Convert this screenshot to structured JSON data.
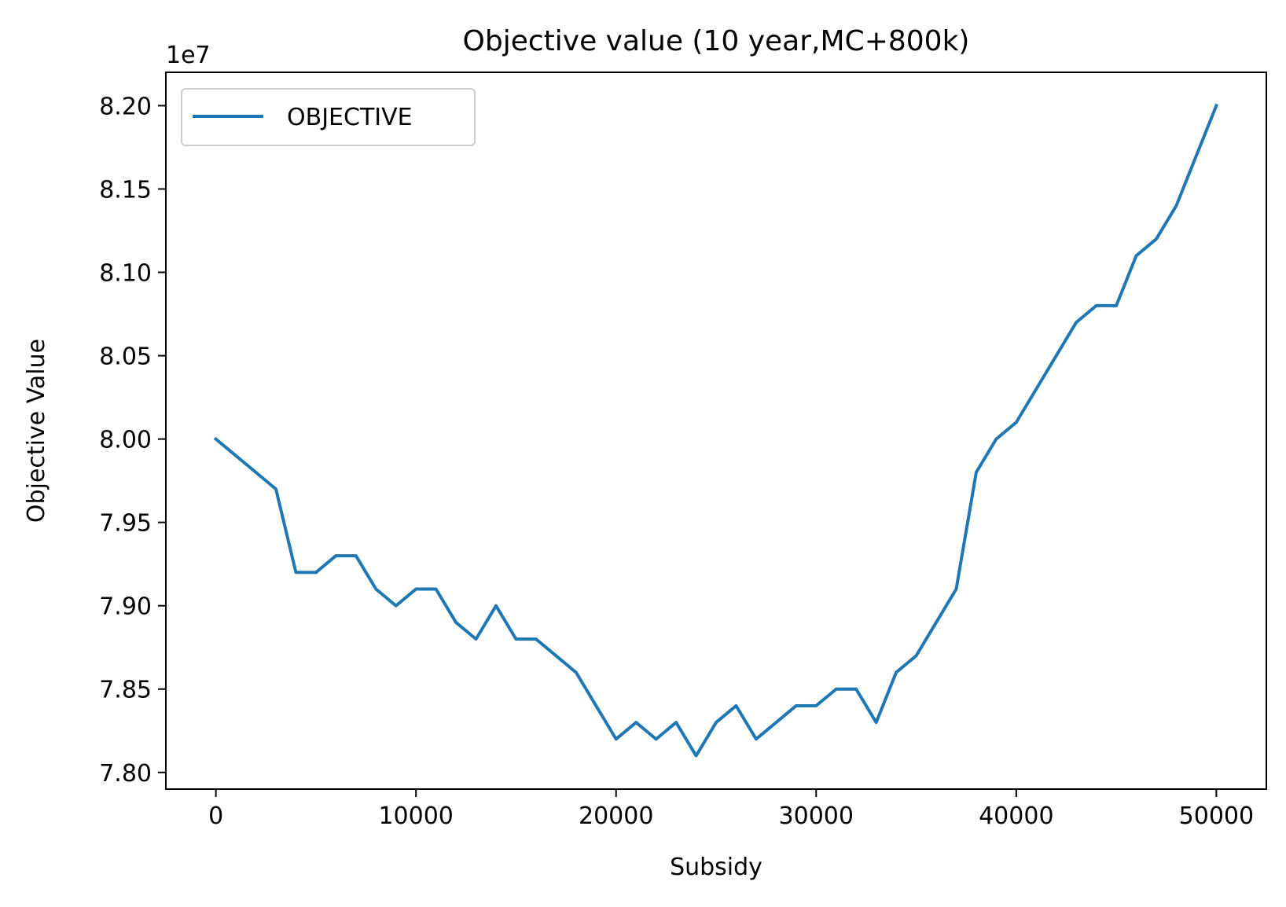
{
  "chart_data": {
    "type": "line",
    "title": "Objective value (10 year,MC+800k)",
    "xlabel": "Subsidy",
    "ylabel": "Objective Value",
    "y_offset_text": "1e7",
    "xlim": [
      -2500,
      52500
    ],
    "ylim": [
      7.79,
      8.22
    ],
    "x_ticks": [
      0,
      10000,
      20000,
      30000,
      40000,
      50000
    ],
    "y_ticks": [
      7.8,
      7.85,
      7.9,
      7.95,
      8.0,
      8.05,
      8.1,
      8.15,
      8.2
    ],
    "x_tick_labels": [
      "0",
      "10000",
      "20000",
      "30000",
      "40000",
      "50000"
    ],
    "y_tick_labels": [
      "7.80",
      "7.85",
      "7.90",
      "7.95",
      "8.00",
      "8.05",
      "8.10",
      "8.15",
      "8.20"
    ],
    "grid": false,
    "legend_position": "upper-left",
    "series": [
      {
        "name": "OBJECTIVE",
        "color": "#1f77b4",
        "x": [
          0,
          1000,
          2000,
          3000,
          4000,
          5000,
          6000,
          7000,
          8000,
          9000,
          10000,
          11000,
          12000,
          13000,
          14000,
          15000,
          16000,
          17000,
          18000,
          19000,
          20000,
          21000,
          22000,
          23000,
          24000,
          25000,
          26000,
          27000,
          28000,
          29000,
          30000,
          31000,
          32000,
          33000,
          34000,
          35000,
          36000,
          37000,
          38000,
          39000,
          40000,
          41000,
          42000,
          43000,
          44000,
          45000,
          46000,
          47000,
          48000,
          49000,
          50000
        ],
        "values": [
          8.0,
          7.99,
          7.98,
          7.97,
          7.92,
          7.92,
          7.93,
          7.93,
          7.91,
          7.9,
          7.91,
          7.91,
          7.89,
          7.88,
          7.9,
          7.88,
          7.88,
          7.87,
          7.86,
          7.84,
          7.82,
          7.83,
          7.82,
          7.83,
          7.81,
          7.83,
          7.84,
          7.82,
          7.83,
          7.84,
          7.84,
          7.85,
          7.85,
          7.83,
          7.86,
          7.87,
          7.89,
          7.91,
          7.98,
          8.0,
          8.01,
          8.03,
          8.05,
          8.07,
          8.08,
          8.08,
          8.11,
          8.12,
          8.14,
          8.17,
          8.2
        ]
      }
    ]
  }
}
